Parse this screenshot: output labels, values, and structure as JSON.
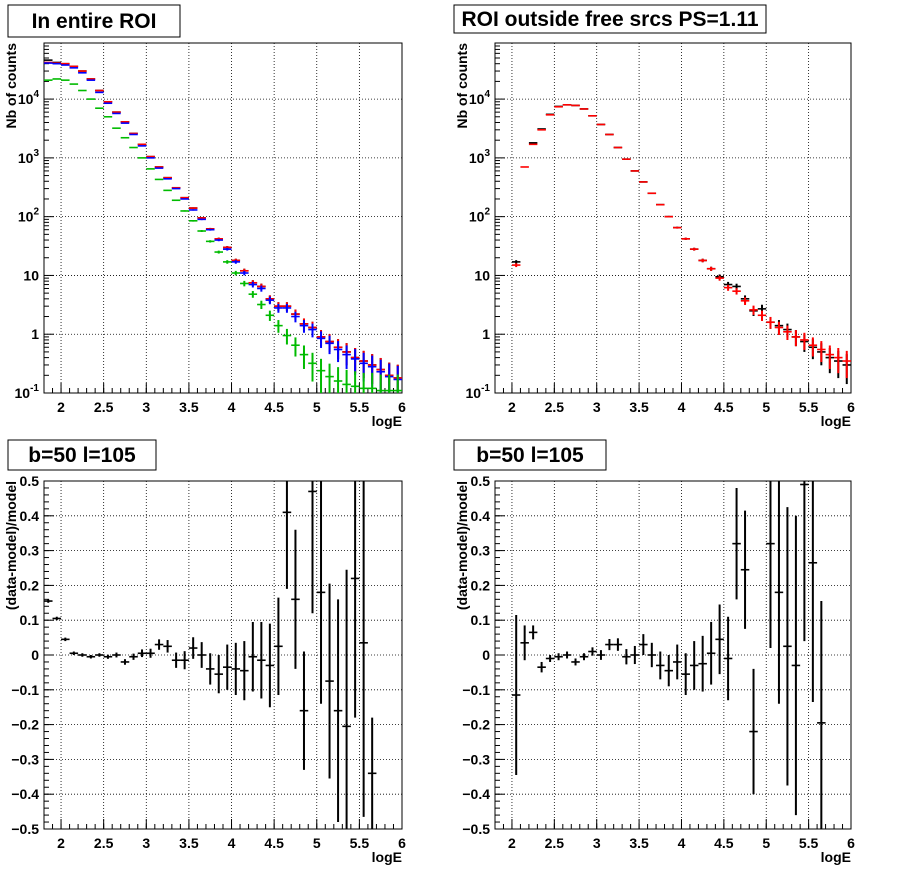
{
  "chart_data": [
    {
      "type": "scatter",
      "title": "In entire ROI",
      "xlabel": "logE",
      "ylabel": "Nb of counts",
      "xlim": [
        1.8,
        6.0
      ],
      "ylim": [
        0.1,
        90000
      ],
      "yscale": "log",
      "grid": true,
      "x_ticks": [
        "2",
        "2.5",
        "3",
        "3.5",
        "4",
        "4.5",
        "5",
        "5.5",
        "6"
      ],
      "y_ticks": [
        "10^-1",
        "1",
        "10",
        "10^2",
        "10^3",
        "10^4"
      ],
      "series": [
        {
          "color": "#000000",
          "x": [
            1.85,
            1.95,
            2.05,
            2.15,
            2.25,
            2.35,
            2.45,
            2.55,
            2.65,
            2.75,
            2.85,
            2.95,
            3.05,
            3.15,
            3.25,
            3.35,
            3.45,
            3.55,
            3.65,
            3.75,
            3.85,
            3.95,
            4.05,
            4.15,
            4.25,
            4.35,
            4.45,
            4.55,
            4.65,
            4.75,
            4.85,
            4.95,
            5.05,
            5.15,
            5.25,
            5.35,
            5.45,
            5.55,
            5.65,
            5.75,
            5.85,
            5.95
          ],
          "y": [
            46000,
            42000,
            40000,
            36000,
            30000,
            22000,
            14000,
            9000,
            6000,
            4100,
            2600,
            1700,
            1050,
            700,
            460,
            310,
            210,
            140,
            95,
            62,
            42,
            30,
            18,
            12,
            7.5,
            6.5,
            4,
            3,
            3,
            2.2,
            1.5,
            1.3,
            0.9,
            0.75,
            0.6,
            0.5,
            0.4,
            0.35,
            0.3,
            0.25,
            0.2,
            0.18
          ]
        },
        {
          "color": "#ff0000",
          "x": [
            1.85,
            1.95,
            2.05,
            2.15,
            2.25,
            2.35,
            2.45,
            2.55,
            2.65,
            2.75,
            2.85,
            2.95,
            3.05,
            3.15,
            3.25,
            3.35,
            3.45,
            3.55,
            3.65,
            3.75,
            3.85,
            3.95,
            4.05,
            4.15,
            4.25,
            4.35,
            4.45,
            4.55,
            4.65,
            4.75,
            4.85,
            4.95,
            5.05,
            5.15,
            5.25,
            5.35,
            5.45,
            5.55,
            5.65,
            5.75,
            5.85,
            5.95
          ],
          "y": [
            42000,
            41000,
            40000,
            36000,
            30000,
            22000,
            14000,
            9000,
            6000,
            4100,
            2600,
            1700,
            1050,
            700,
            460,
            310,
            210,
            140,
            95,
            62,
            42,
            30,
            18,
            12,
            7.5,
            6.5,
            4,
            3,
            3,
            2.2,
            1.5,
            1.3,
            0.9,
            0.75,
            0.6,
            0.5,
            0.4,
            0.35,
            0.3,
            0.25,
            0.2,
            0.18
          ]
        },
        {
          "color": "#0000ff",
          "x": [
            1.85,
            1.95,
            2.05,
            2.15,
            2.25,
            2.35,
            2.45,
            2.55,
            2.65,
            2.75,
            2.85,
            2.95,
            3.05,
            3.15,
            3.25,
            3.35,
            3.45,
            3.55,
            3.65,
            3.75,
            3.85,
            3.95,
            4.05,
            4.15,
            4.25,
            4.35,
            4.45,
            4.55,
            4.65,
            4.75,
            4.85,
            4.95,
            5.05,
            5.15,
            5.25,
            5.35,
            5.45,
            5.55,
            5.65,
            5.75,
            5.85,
            5.95
          ],
          "y": [
            41000,
            40000,
            38000,
            34000,
            28000,
            21000,
            13000,
            8500,
            5700,
            3900,
            2500,
            1600,
            1000,
            670,
            440,
            300,
            200,
            130,
            90,
            60,
            40,
            28,
            17,
            11,
            7,
            6,
            3.8,
            2.8,
            2.8,
            2.0,
            1.4,
            1.2,
            0.85,
            0.7,
            0.55,
            0.45,
            0.38,
            0.32,
            0.28,
            0.23,
            0.19,
            0.17
          ]
        },
        {
          "color": "#00bb00",
          "x": [
            1.85,
            1.95,
            2.05,
            2.15,
            2.25,
            2.35,
            2.45,
            2.55,
            2.65,
            2.75,
            2.85,
            2.95,
            3.05,
            3.15,
            3.25,
            3.35,
            3.45,
            3.55,
            3.65,
            3.75,
            3.85,
            3.95,
            4.05,
            4.15,
            4.25,
            4.35,
            4.45,
            4.55,
            4.65,
            4.75,
            4.85,
            4.95,
            5.05,
            5.15,
            5.25,
            5.35,
            5.45,
            5.55,
            5.65,
            5.75,
            5.85,
            5.95
          ],
          "y": [
            21000,
            22000,
            21000,
            18000,
            14000,
            10000,
            7000,
            5000,
            3200,
            2200,
            1500,
            1000,
            650,
            430,
            280,
            190,
            125,
            85,
            57,
            38,
            25,
            17,
            11,
            7.3,
            4.8,
            3.2,
            2.1,
            1.4,
            0.95,
            0.65,
            0.45,
            0.32,
            0.24,
            0.19,
            0.16,
            0.14,
            0.13,
            0.12,
            0.12,
            0.11,
            0.11,
            0.11
          ]
        }
      ]
    },
    {
      "type": "scatter",
      "title": "ROI outside free srcs PS=1.11",
      "xlabel": "logE",
      "ylabel": "Nb of counts",
      "xlim": [
        1.8,
        6.0
      ],
      "ylim": [
        0.1,
        90000
      ],
      "yscale": "log",
      "grid": true,
      "x_ticks": [
        "2",
        "2.5",
        "3",
        "3.5",
        "4",
        "4.5",
        "5",
        "5.5",
        "6"
      ],
      "y_ticks": [
        "10^-1",
        "1",
        "10",
        "10^2",
        "10^3",
        "10^4"
      ],
      "series": [
        {
          "color": "#000000",
          "x": [
            2.05,
            2.25,
            2.35,
            2.45,
            2.55,
            2.65,
            2.75,
            2.85,
            2.95,
            3.05,
            3.15,
            3.25,
            3.35,
            3.45,
            3.55,
            3.65,
            3.75,
            3.85,
            3.95,
            4.05,
            4.15,
            4.25,
            4.35,
            4.45,
            4.55,
            4.65,
            4.75,
            4.85,
            4.95,
            5.05,
            5.15,
            5.25,
            5.35,
            5.45,
            5.55,
            5.65,
            5.75,
            5.85,
            5.95
          ],
          "y": [
            17,
            1800,
            3100,
            5500,
            7500,
            8000,
            7800,
            6800,
            5200,
            3700,
            2500,
            1500,
            950,
            600,
            390,
            250,
            160,
            100,
            65,
            42,
            28,
            18,
            13,
            9.5,
            7,
            6.5,
            4,
            2.5,
            2.7,
            1.6,
            1.4,
            1.2,
            0.9,
            0.75,
            0.6,
            0.5,
            0.4,
            0.35,
            0.3
          ]
        },
        {
          "color": "#ff0000",
          "x": [
            2.05,
            2.15,
            2.25,
            2.35,
            2.45,
            2.55,
            2.65,
            2.75,
            2.85,
            2.95,
            3.05,
            3.15,
            3.25,
            3.35,
            3.45,
            3.55,
            3.65,
            3.75,
            3.85,
            3.95,
            4.05,
            4.15,
            4.25,
            4.35,
            4.45,
            4.55,
            4.65,
            4.75,
            4.85,
            4.95,
            5.05,
            5.15,
            5.25,
            5.35,
            5.45,
            5.55,
            5.65,
            5.75,
            5.85,
            5.95
          ],
          "y": [
            15,
            700,
            1700,
            3000,
            5400,
            7400,
            8000,
            7800,
            6800,
            5200,
            3700,
            2500,
            1500,
            950,
            600,
            390,
            250,
            160,
            100,
            65,
            42,
            28,
            18,
            13,
            9,
            6.2,
            5.4,
            3.7,
            2.6,
            2.1,
            1.6,
            1.3,
            1.1,
            0.9,
            0.8,
            0.65,
            0.55,
            0.45,
            0.4,
            0.35
          ]
        }
      ]
    },
    {
      "type": "scatter",
      "title": "b=50 l=105",
      "xlabel": "logE",
      "ylabel": "(data-model)/model",
      "xlim": [
        1.8,
        6.0
      ],
      "ylim": [
        -0.5,
        0.5
      ],
      "grid": true,
      "x_ticks": [
        "2",
        "2.5",
        "3",
        "3.5",
        "4",
        "4.5",
        "5",
        "5.5",
        "6"
      ],
      "y_ticks": [
        "-0.5",
        "-0.4",
        "-0.3",
        "-0.2",
        "-0.1",
        "0",
        "0.1",
        "0.2",
        "0.3",
        "0.4",
        "0.5"
      ],
      "series": [
        {
          "color": "#000000",
          "x": [
            1.85,
            1.95,
            2.05,
            2.15,
            2.25,
            2.35,
            2.45,
            2.55,
            2.65,
            2.75,
            2.85,
            2.95,
            3.05,
            3.15,
            3.25,
            3.35,
            3.45,
            3.55,
            3.65,
            3.75,
            3.85,
            3.95,
            4.05,
            4.15,
            4.25,
            4.35,
            4.45,
            4.55,
            4.65,
            4.75,
            4.85,
            4.95,
            5.05,
            5.15,
            5.25,
            5.35,
            5.45,
            5.55,
            5.65
          ],
          "y": [
            0.155,
            0.105,
            0.045,
            0.005,
            0.0,
            -0.005,
            0.0,
            -0.005,
            0.0,
            -0.02,
            -0.005,
            0.005,
            0.005,
            0.03,
            0.025,
            -0.015,
            -0.015,
            0.02,
            0.0,
            -0.04,
            -0.055,
            -0.035,
            -0.04,
            -0.045,
            -0.005,
            -0.015,
            -0.03,
            0.025,
            0.41,
            0.16,
            -0.16,
            0.47,
            0.18,
            -0.075,
            -0.16,
            -0.205,
            0.22,
            0.035,
            -0.34
          ],
          "yerr": [
            0.005,
            0.005,
            0.005,
            0.005,
            0.005,
            0.005,
            0.005,
            0.006,
            0.007,
            0.008,
            0.009,
            0.011,
            0.013,
            0.015,
            0.018,
            0.022,
            0.026,
            0.031,
            0.037,
            0.045,
            0.055,
            0.065,
            0.075,
            0.085,
            0.1,
            0.11,
            0.12,
            0.14,
            0.22,
            0.2,
            0.17,
            0.35,
            0.32,
            0.28,
            0.32,
            0.45,
            0.4,
            0.5,
            0.16
          ]
        }
      ]
    },
    {
      "type": "scatter",
      "title": "b=50 l=105",
      "xlabel": "logE",
      "ylabel": "(data-model)/model",
      "xlim": [
        1.8,
        6.0
      ],
      "ylim": [
        -0.5,
        0.5
      ],
      "grid": true,
      "x_ticks": [
        "2",
        "2.5",
        "3",
        "3.5",
        "4",
        "4.5",
        "5",
        "5.5",
        "6"
      ],
      "y_ticks": [
        "-0.5",
        "-0.4",
        "-0.3",
        "-0.2",
        "-0.1",
        "0",
        "0.1",
        "0.2",
        "0.3",
        "0.4",
        "0.5"
      ],
      "series": [
        {
          "color": "#000000",
          "x": [
            2.05,
            2.15,
            2.25,
            2.35,
            2.45,
            2.55,
            2.65,
            2.75,
            2.85,
            2.95,
            3.05,
            3.15,
            3.25,
            3.35,
            3.45,
            3.55,
            3.65,
            3.75,
            3.85,
            3.95,
            4.05,
            4.15,
            4.25,
            4.35,
            4.45,
            4.55,
            4.65,
            4.75,
            4.85,
            5.05,
            5.15,
            5.25,
            5.35,
            5.45,
            5.55,
            5.65
          ],
          "y": [
            -0.115,
            0.035,
            0.065,
            -0.035,
            -0.01,
            -0.005,
            0.0,
            -0.02,
            -0.005,
            0.01,
            0.0,
            0.03,
            0.03,
            -0.005,
            0.0,
            0.03,
            0.0,
            -0.03,
            -0.045,
            -0.02,
            -0.055,
            -0.03,
            -0.025,
            0.005,
            0.045,
            -0.01,
            0.32,
            0.245,
            -0.22,
            0.32,
            0.18,
            0.025,
            -0.03,
            0.49,
            0.265,
            -0.195
          ],
          "yerr": [
            0.23,
            0.05,
            0.02,
            0.015,
            0.01,
            0.01,
            0.01,
            0.01,
            0.01,
            0.012,
            0.014,
            0.016,
            0.018,
            0.022,
            0.026,
            0.03,
            0.035,
            0.04,
            0.045,
            0.05,
            0.06,
            0.07,
            0.08,
            0.09,
            0.1,
            0.12,
            0.16,
            0.17,
            0.18,
            0.3,
            0.32,
            0.4,
            0.43,
            0.45,
            0.4,
            0.35
          ]
        }
      ]
    }
  ]
}
